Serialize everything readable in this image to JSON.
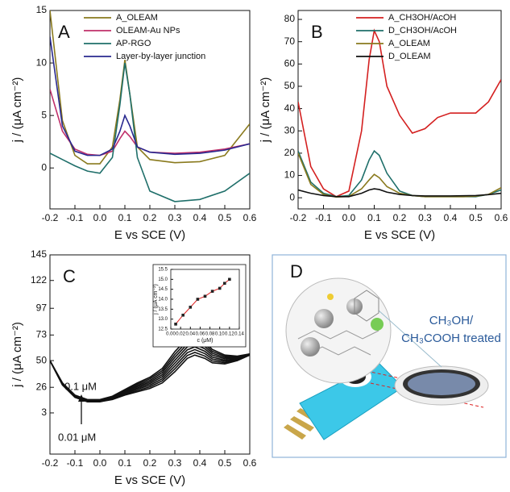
{
  "chart_data": [
    {
      "type": "line",
      "panel_label": "A",
      "xlabel": "E vs SCE (V)",
      "ylabel": "j / (μA cm⁻²)",
      "x": [
        -0.2,
        -0.15,
        -0.1,
        -0.05,
        0,
        0.05,
        0.08,
        0.1,
        0.12,
        0.15,
        0.2,
        0.3,
        0.4,
        0.5,
        0.6
      ],
      "series": [
        {
          "name": "A_OLEAM",
          "color": "#8a7a1e",
          "values": [
            15,
            4.5,
            1.2,
            0.4,
            0.4,
            2,
            6.5,
            10.3,
            7,
            2,
            0.8,
            0.5,
            0.6,
            1.2,
            4.2
          ]
        },
        {
          "name": "OLEAM-Au NPs",
          "color": "#c0306a",
          "values": [
            7.5,
            3.5,
            1.8,
            1.3,
            1.2,
            1.6,
            2.8,
            3.5,
            3,
            2,
            1.5,
            1.4,
            1.5,
            1.8,
            2.3
          ]
        },
        {
          "name": "AP-RGO",
          "color": "#1f6f6a",
          "values": [
            1.4,
            0.8,
            0.2,
            -0.3,
            -0.5,
            1,
            6,
            10,
            7,
            1,
            -2.2,
            -3.2,
            -3,
            -2.2,
            -0.5
          ]
        },
        {
          "name": "Layer-by-layer junction",
          "color": "#28288f",
          "values": [
            12.5,
            4,
            1.6,
            1.2,
            1.2,
            1.8,
            3.5,
            5,
            4,
            2,
            1.5,
            1.3,
            1.4,
            1.7,
            2.3
          ]
        }
      ],
      "xlim": [
        -0.2,
        0.6
      ],
      "xticks": [
        -0.2,
        -0.1,
        {
          "value": 0,
          "label": "0.0"
        },
        0.1,
        0.2,
        0.3,
        0.4,
        0.5,
        0.6
      ],
      "ylim": [
        -3.9,
        15
      ],
      "yticks": [
        0,
        5,
        10,
        15
      ],
      "legend": "upper left"
    },
    {
      "type": "line",
      "panel_label": "B",
      "xlabel": "E vs SCE (V)",
      "ylabel": "j / (μA cm⁻²)",
      "x": [
        -0.2,
        -0.15,
        -0.1,
        -0.05,
        0,
        0.05,
        0.08,
        0.1,
        0.12,
        0.15,
        0.2,
        0.25,
        0.3,
        0.35,
        0.4,
        0.45,
        0.5,
        0.55,
        0.6
      ],
      "series": [
        {
          "name": "A_CH3OH/AcOH",
          "color": "#d42020",
          "values": [
            43,
            14,
            4,
            0.5,
            3,
            30,
            62,
            75,
            70,
            50,
            37,
            29,
            31,
            36,
            38,
            38,
            38,
            43,
            53
          ]
        },
        {
          "name": "D_CH3OH/AcOH",
          "color": "#1f6f6a",
          "values": [
            21,
            7,
            2,
            0.5,
            1,
            8,
            17,
            21,
            19,
            11,
            3,
            1,
            0.5,
            0.5,
            0.5,
            0.5,
            0.5,
            1.5,
            3.5
          ]
        },
        {
          "name": "A_OLEAM",
          "color": "#8a7a1e",
          "values": [
            20,
            6,
            1.5,
            0.3,
            0.6,
            4,
            8,
            10.5,
            9,
            5,
            2,
            1,
            0.5,
            0.5,
            0.5,
            0.5,
            0.7,
            1.5,
            4.5
          ]
        },
        {
          "name": "D_OLEAM",
          "color": "#111111",
          "values": [
            3.5,
            2,
            1,
            0.5,
            0.5,
            2,
            3.5,
            4,
            3.7,
            2.5,
            1.5,
            1,
            0.8,
            0.8,
            0.8,
            0.9,
            1,
            1.4,
            2
          ]
        }
      ],
      "xlim": [
        -0.2,
        0.6
      ],
      "xticks": [
        -0.2,
        -0.1,
        {
          "value": 0,
          "label": "0.0"
        },
        0.1,
        0.2,
        0.3,
        0.4,
        0.5,
        0.6
      ],
      "ylim": [
        -5,
        84
      ],
      "yticks": [
        0,
        10,
        20,
        30,
        40,
        50,
        60,
        70,
        80
      ],
      "legend": "upper right"
    },
    {
      "type": "line",
      "panel_label": "C",
      "xlabel": "E vs SCE (V)",
      "ylabel": "j / (μA cm⁻²)",
      "annotations": [
        "0.1 μM",
        "0.01 μM"
      ],
      "x": [
        -0.2,
        -0.15,
        -0.1,
        -0.05,
        0,
        0.05,
        0.1,
        0.15,
        0.2,
        0.25,
        0.3,
        0.35,
        0.38,
        0.42,
        0.45,
        0.5,
        0.55,
        0.6
      ],
      "series": [
        {
          "color": "#111111",
          "values": [
            50,
            28,
            17,
            13,
            13,
            15,
            19,
            22,
            25,
            30,
            40,
            52,
            55,
            52,
            48,
            47,
            50,
            55
          ]
        },
        {
          "color": "#111111",
          "values": [
            50,
            28.3,
            17.3,
            13.3,
            13.3,
            15.4,
            19.7,
            23.1,
            26.4,
            31.9,
            42.6,
            54.6,
            57.4,
            54.1,
            49.7,
            48.1,
            50.6,
            55.1
          ]
        },
        {
          "color": "#111111",
          "values": [
            50,
            28.6,
            17.6,
            13.6,
            13.6,
            15.9,
            20.4,
            24.3,
            27.9,
            33.7,
            45.1,
            57.1,
            59.9,
            56.3,
            51.4,
            49.3,
            51.1,
            55.3
          ]
        },
        {
          "color": "#111111",
          "values": [
            50,
            28.9,
            17.9,
            13.9,
            13.9,
            16.3,
            21.1,
            25.4,
            29.3,
            35.6,
            47.7,
            59.7,
            62.3,
            58.4,
            53.1,
            50.4,
            51.7,
            55.4
          ]
        },
        {
          "color": "#111111",
          "values": [
            50,
            29.1,
            18.1,
            14.1,
            14.1,
            16.7,
            21.9,
            26.6,
            30.7,
            37.4,
            50.3,
            62.3,
            64.7,
            60.6,
            54.9,
            51.6,
            52.3,
            55.6
          ]
        },
        {
          "color": "#111111",
          "values": [
            50,
            29.4,
            18.4,
            14.4,
            14.4,
            17.1,
            22.6,
            27.7,
            32.1,
            39.3,
            52.9,
            64.9,
            67.1,
            62.7,
            56.6,
            52.7,
            52.9,
            55.7
          ]
        },
        {
          "color": "#111111",
          "values": [
            50,
            29.7,
            18.7,
            14.7,
            14.7,
            17.6,
            23.3,
            28.9,
            33.6,
            41.1,
            55.4,
            67.4,
            69.6,
            64.9,
            58.3,
            53.9,
            53.4,
            55.9
          ]
        },
        {
          "color": "#111111",
          "values": [
            50,
            30,
            19,
            15,
            15,
            18,
            24,
            30,
            35,
            43,
            58,
            70,
            72,
            67,
            60,
            55,
            54,
            56
          ]
        }
      ],
      "xlim": [
        -0.2,
        0.6
      ],
      "xticks": [
        -0.2,
        -0.1,
        {
          "value": 0,
          "label": "0.0"
        },
        0.1,
        0.2,
        0.3,
        0.4,
        0.5,
        0.6
      ],
      "ylim": [
        -34,
        145
      ],
      "yticks": [
        3,
        26,
        50,
        73,
        97,
        122,
        145
      ]
    },
    {
      "type": "line",
      "xlabel": "c (μM)",
      "ylabel": "j / (μA cm⁻²)",
      "markers": true,
      "marker_color": "#222222",
      "x": [
        0.01,
        0.025,
        0.04,
        0.055,
        0.07,
        0.085,
        0.1,
        0.11,
        0.12
      ],
      "series": [
        {
          "color": "#e02020",
          "values": [
            12.75,
            13.2,
            13.6,
            14.0,
            14.15,
            14.4,
            14.55,
            14.8,
            15.0
          ]
        }
      ],
      "xlim": [
        0,
        0.14
      ],
      "xticks": [
        {
          "value": 0,
          "label": "0.00"
        },
        0.02,
        0.04,
        0.06,
        0.08,
        {
          "value": 0.1,
          "label": "0.10"
        },
        0.12,
        0.14
      ],
      "ylim": [
        12.5,
        15.5
      ],
      "yticks": [
        12.5,
        {
          "value": 13,
          "label": "13.0"
        },
        13.5,
        {
          "value": 14,
          "label": "14.0"
        },
        14.5,
        {
          "value": 15,
          "label": "15.0"
        },
        15.5
      ]
    }
  ],
  "illustration": {
    "label": "D",
    "text_lines": [
      "CH₃OH/",
      "CH₃COOH treated"
    ]
  }
}
